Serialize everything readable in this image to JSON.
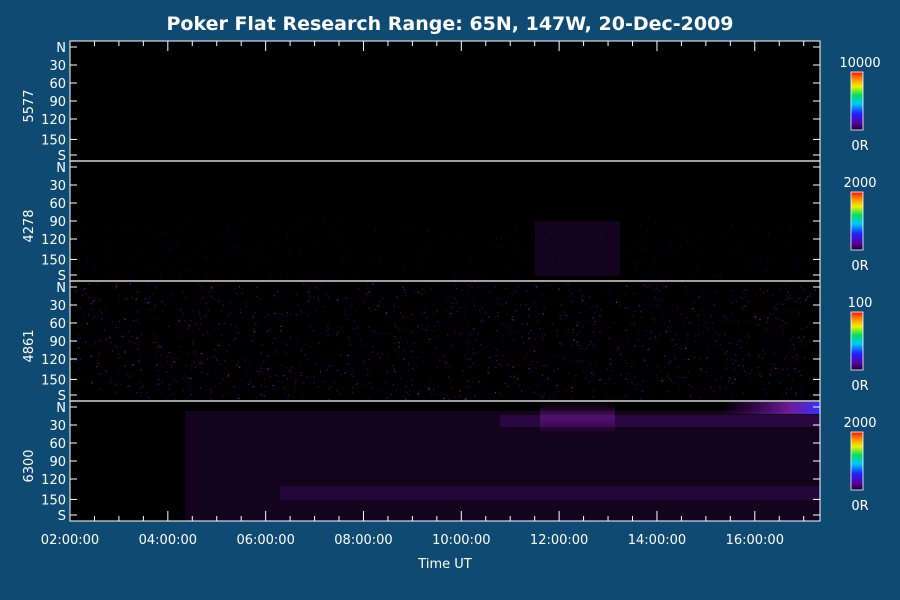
{
  "chart_data": {
    "type": "heatmap",
    "title": "Poker Flat Research Range: 65N, 147W, 20-Dec-2009",
    "xlabel": "Time UT",
    "xlim": [
      "02:00:00",
      "17:20:00"
    ],
    "x_ticks": [
      "02:00:00",
      "04:00:00",
      "06:00:00",
      "08:00:00",
      "10:00:00",
      "12:00:00",
      "14:00:00",
      "16:00:00"
    ],
    "y_ticks": [
      "N",
      "30",
      "60",
      "90",
      "120",
      "150",
      "S"
    ],
    "colorscale": "rainbow",
    "panels": [
      {
        "label": "5577",
        "cbar_max": "10000",
        "cbar_min": "0R"
      },
      {
        "label": "4278",
        "cbar_max": "2000",
        "cbar_min": "0R"
      },
      {
        "label": "4861",
        "cbar_max": "100",
        "cbar_min": "0R"
      },
      {
        "label": "6300",
        "cbar_max": "2000",
        "cbar_min": "0R"
      }
    ]
  }
}
